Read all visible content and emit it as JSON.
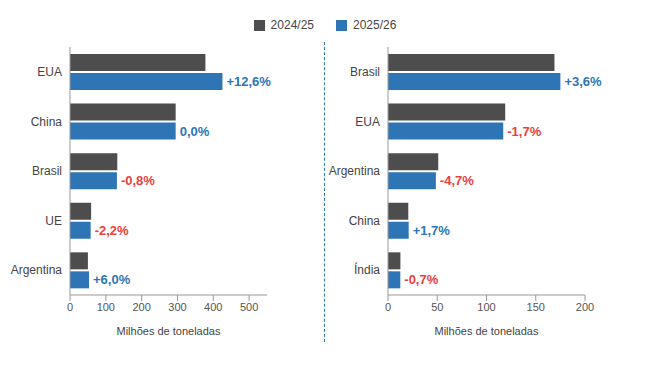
{
  "chart_data": [
    {
      "type": "bar",
      "orientation": "horizontal",
      "legend": "top",
      "grid": false,
      "x_label": "Milhões de toneladas",
      "categories": [
        "EUA",
        "China",
        "Brasil",
        "UE",
        "Argentina"
      ],
      "series": [
        {
          "name": "2024/25",
          "color": "#4d4d4d",
          "values": [
            378,
            295,
            132,
            59,
            50
          ]
        },
        {
          "name": "2025/26",
          "color": "#2e75b6",
          "values": [
            425.6,
            295,
            131,
            57.7,
            53
          ]
        }
      ],
      "annotations": [
        "+12,6%",
        "0,0%",
        "-0,8%",
        "-2,2%",
        "+6,0%"
      ],
      "xlim": [
        0,
        550
      ],
      "xticks": [
        0,
        100,
        200,
        300,
        400,
        500
      ]
    },
    {
      "type": "bar",
      "orientation": "horizontal",
      "grid": false,
      "x_label": "Milhões de toneladas",
      "categories": [
        "Brasil",
        "EUA",
        "Argentina",
        "China",
        "Índia"
      ],
      "series": [
        {
          "name": "2024/25",
          "color": "#4d4d4d",
          "values": [
            169,
            119,
            51,
            20.6,
            12.6
          ]
        },
        {
          "name": "2025/26",
          "color": "#2e75b6",
          "values": [
            175,
            117,
            48.6,
            21,
            12.5
          ]
        }
      ],
      "annotations": [
        "+3,6%",
        "-1,7%",
        "-4,7%",
        "+1,7%",
        "-0,7%"
      ],
      "xlim": [
        0,
        200
      ],
      "xticks": [
        0,
        50,
        100,
        150,
        200
      ]
    }
  ]
}
